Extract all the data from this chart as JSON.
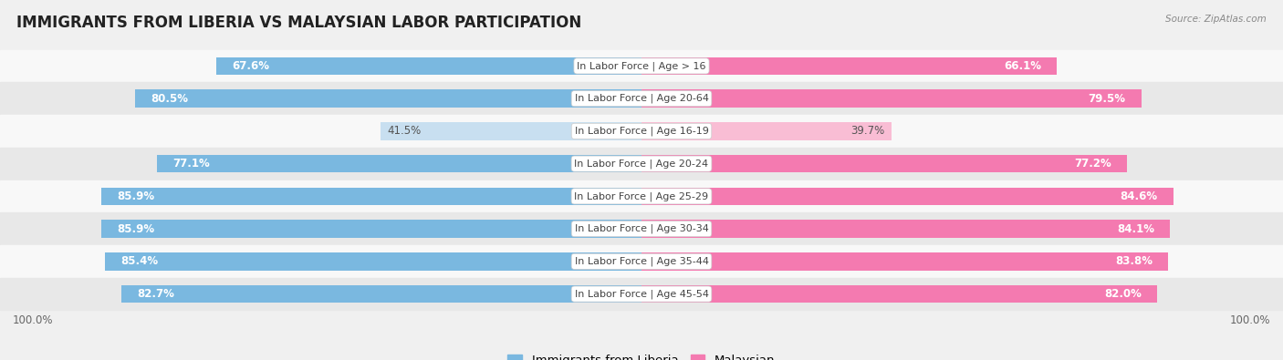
{
  "title": "IMMIGRANTS FROM LIBERIA VS MALAYSIAN LABOR PARTICIPATION",
  "source": "Source: ZipAtlas.com",
  "categories": [
    "In Labor Force | Age > 16",
    "In Labor Force | Age 20-64",
    "In Labor Force | Age 16-19",
    "In Labor Force | Age 20-24",
    "In Labor Force | Age 25-29",
    "In Labor Force | Age 30-34",
    "In Labor Force | Age 35-44",
    "In Labor Force | Age 45-54"
  ],
  "liberia_values": [
    67.6,
    80.5,
    41.5,
    77.1,
    85.9,
    85.9,
    85.4,
    82.7
  ],
  "malaysian_values": [
    66.1,
    79.5,
    39.7,
    77.2,
    84.6,
    84.1,
    83.8,
    82.0
  ],
  "liberia_color": "#7ab8e0",
  "liberia_color_light": "#c8dff0",
  "malaysian_color": "#f47ab0",
  "malaysian_color_light": "#f9bdd4",
  "bar_height": 0.55,
  "background_color": "#f0f0f0",
  "row_bg_light": "#f8f8f8",
  "row_bg_dark": "#e8e8e8",
  "max_value": 100.0,
  "label_fontsize": 8.5,
  "cat_fontsize": 8,
  "title_fontsize": 12,
  "legend_fontsize": 9.5,
  "axis_label_fontsize": 8.5
}
